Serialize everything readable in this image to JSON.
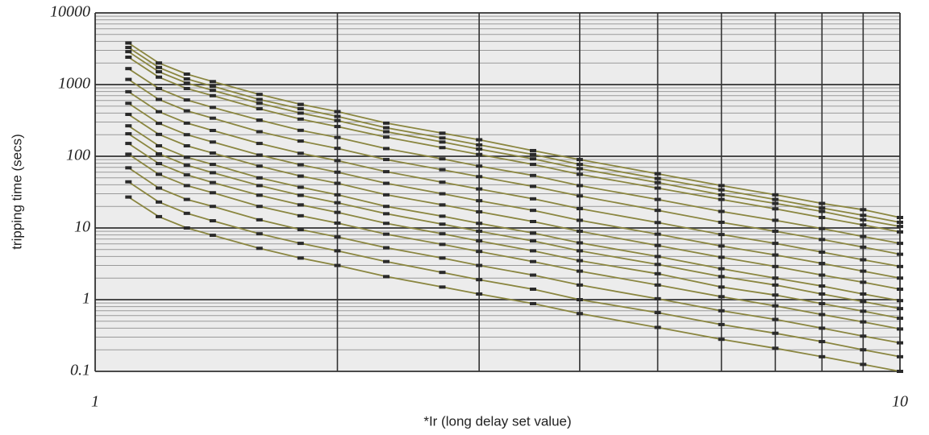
{
  "chart_data": {
    "type": "line",
    "xlabel": "*Ir (long delay set value)",
    "ylabel": "tripping time (secs)",
    "log_x": true,
    "log_y": true,
    "grid": true,
    "color": "#8a8640",
    "marker_color": "#2a2a2a",
    "xlim": [
      1,
      10
    ],
    "xticks": [
      1,
      10
    ],
    "ylim": [
      0.1,
      10000
    ],
    "yticks": [
      0.1,
      1,
      10,
      100,
      1000,
      10000
    ],
    "x": [
      1.1,
      1.2,
      1.3,
      1.4,
      1.6,
      1.8,
      2,
      2.3,
      2.7,
      3,
      3.5,
      4,
      5,
      6,
      7,
      8,
      9,
      10
    ],
    "series": [
      {
        "values": [
          3800,
          2000,
          1400,
          1100,
          730,
          530,
          420,
          290,
          210,
          170,
          120,
          90,
          57,
          39,
          29,
          22,
          18,
          14
        ]
      },
      {
        "values": [
          3290,
          1730,
          1200,
          950,
          620,
          460,
          360,
          250,
          180,
          144,
          106,
          77,
          49,
          34,
          25,
          19,
          15,
          12
        ]
      },
      {
        "values": [
          2880,
          1510,
          1050,
          830,
          550,
          400,
          315,
          220,
          158,
          126,
          92,
          67,
          43,
          29,
          22,
          17,
          13,
          10.5
        ]
      },
      {
        "values": [
          2410,
          1270,
          880,
          700,
          460,
          330,
          260,
          185,
          132,
          106,
          77,
          56,
          36,
          25,
          18.5,
          14,
          11,
          8.8
        ]
      },
      {
        "values": [
          1670,
          880,
          610,
          480,
          320,
          230,
          183,
          128,
          92,
          73,
          54,
          39,
          25,
          17,
          12.8,
          9.8,
          7.6,
          6.1
        ]
      },
      {
        "values": [
          1180,
          620,
          430,
          340,
          220,
          163,
          129,
          90,
          65,
          52,
          38,
          28,
          17.6,
          12,
          9,
          6.9,
          5.4,
          4.3
        ]
      },
      {
        "values": [
          795,
          418,
          290,
          229,
          151,
          110,
          87,
          61,
          43.5,
          35,
          25.5,
          18.6,
          11.9,
          8.1,
          6.1,
          4.6,
          3.6,
          2.9
        ]
      },
      {
        "values": [
          548,
          288,
          200,
          158,
          104,
          76,
          60,
          42,
          30,
          24,
          17.6,
          12.8,
          8.2,
          5.6,
          4.2,
          3.2,
          2.5,
          2.0
        ]
      },
      {
        "values": [
          384,
          202,
          140,
          111,
          73,
          53,
          42,
          29,
          21,
          16.8,
          12.3,
          9,
          5.7,
          3.9,
          2.9,
          2.2,
          1.75,
          1.4
        ]
      },
      {
        "values": [
          266,
          140,
          97,
          77,
          50,
          37,
          29,
          20,
          14.6,
          11.6,
          8.5,
          6.2,
          4,
          2.7,
          2,
          1.55,
          1.2,
          0.97
        ]
      },
      {
        "values": [
          206,
          108,
          75,
          59,
          39,
          28.5,
          22.5,
          15.8,
          11.3,
          9,
          6.6,
          4.8,
          3.1,
          2.1,
          1.6,
          1.2,
          0.94,
          0.75
        ]
      },
      {
        "values": [
          151,
          79,
          55,
          43,
          28.6,
          21,
          16.5,
          11.6,
          8.3,
          6.6,
          4.8,
          3.5,
          2.3,
          1.5,
          1.16,
          0.88,
          0.69,
          0.55
        ]
      },
      {
        "values": [
          107,
          56,
          39,
          31,
          20,
          14.8,
          11.7,
          8.2,
          5.9,
          4.7,
          3.4,
          2.5,
          1.6,
          1.1,
          0.82,
          0.62,
          0.49,
          0.39
        ]
      },
      {
        "values": [
          69,
          36,
          25,
          20,
          13,
          9.5,
          7.5,
          5.3,
          3.8,
          3,
          2.2,
          1.6,
          1.03,
          0.7,
          0.53,
          0.4,
          0.31,
          0.25
        ]
      },
      {
        "values": [
          44,
          23,
          16,
          12.6,
          8.3,
          6.1,
          4.8,
          3.4,
          2.4,
          1.9,
          1.4,
          1.0,
          0.66,
          0.45,
          0.34,
          0.26,
          0.2,
          0.16
        ]
      },
      {
        "values": [
          27,
          14.4,
          10,
          7.9,
          5.2,
          3.8,
          3,
          2.1,
          1.5,
          1.2,
          0.88,
          0.64,
          0.41,
          0.28,
          0.21,
          0.16,
          0.125,
          0.1
        ]
      }
    ]
  }
}
